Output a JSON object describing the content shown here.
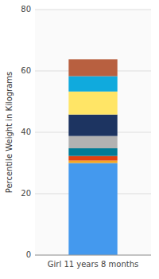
{
  "chart_data": {
    "type": "bar",
    "stacked": true,
    "ylabel": "Percentile Weight in Kilograms",
    "categories": [
      "Girl 11 years 8 months"
    ],
    "series": [
      {
        "color": "#4499ee",
        "values": [
          30.0
        ]
      },
      {
        "color": "#f5a623",
        "values": [
          0.8
        ]
      },
      {
        "color": "#e04010",
        "values": [
          1.5
        ]
      },
      {
        "color": "#007b96",
        "values": [
          2.5
        ]
      },
      {
        "color": "#b2b2b2",
        "values": [
          4.0
        ]
      },
      {
        "color": "#1d3461",
        "values": [
          7.0
        ]
      },
      {
        "color": "#ffe566",
        "values": [
          7.5
        ]
      },
      {
        "color": "#10aadd",
        "values": [
          5.0
        ]
      },
      {
        "color": "#b86040",
        "values": [
          5.5
        ]
      }
    ],
    "ylim": [
      0,
      80
    ],
    "yticks": [
      0,
      20,
      40,
      60,
      80
    ],
    "grid": true
  }
}
